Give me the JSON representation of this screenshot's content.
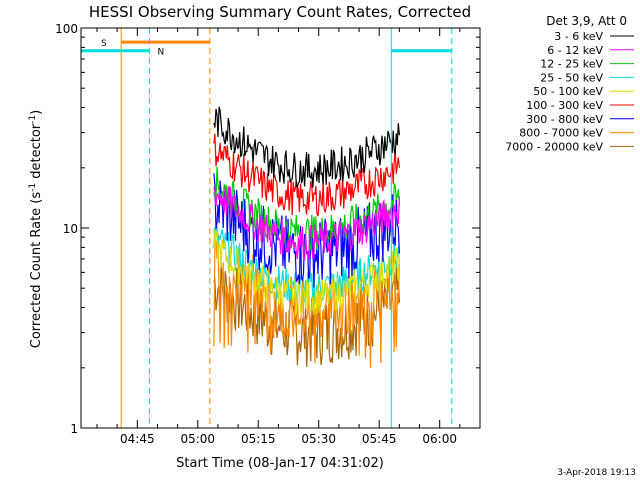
{
  "chart_data": {
    "type": "line",
    "title": "HESSI Observing Summary Count Rates, Corrected",
    "xlabel": "Start Time (08-Jan-17 04:31:02)",
    "ylabel": "Corrected Count Rate (s",
    "ylabel_sup1": "-1",
    "ylabel_mid": " detector",
    "ylabel_sup2": "-1",
    "ylabel_end": ")",
    "x_unit": "minutes",
    "xlim": [
      "04:31:02",
      "06:10:00"
    ],
    "ylim": [
      1,
      100
    ],
    "yscale": "log",
    "xticks": [
      "04:45",
      "05:00",
      "05:15",
      "05:30",
      "05:45",
      "06:00"
    ],
    "yticks": [
      "1",
      "10",
      "100"
    ],
    "legend_title": "Det 3,9, Att 0",
    "legend_position": "top-right",
    "footer_date": "3-Apr-2018 19:13",
    "series": [
      {
        "name": "3 - 6 keV",
        "color": "#000000",
        "level": 19.5
      },
      {
        "name": "6 - 12 keV",
        "color": "#ff00ff",
        "level": 8.5
      },
      {
        "name": "12 - 25 keV",
        "color": "#00cc00",
        "level": 9.5
      },
      {
        "name": "25 - 50 keV",
        "color": "#00dddd",
        "level": 5.0
      },
      {
        "name": "50 - 100 keV",
        "color": "#dddd00",
        "level": 4.5
      },
      {
        "name": "100 - 300 keV",
        "color": "#ff0000",
        "level": 14.0
      },
      {
        "name": "300 - 800 keV",
        "color": "#0000ff",
        "level": 7.5
      },
      {
        "name": "800 - 7000 keV",
        "color": "#ff8800",
        "level": 4.0
      },
      {
        "name": "7000 - 20000 keV",
        "color": "#aa6600",
        "level": 3.0
      }
    ],
    "data_interval": [
      "05:04",
      "05:50"
    ],
    "annotations": [
      {
        "label": "S",
        "color": "#ff8800",
        "level": 85,
        "start": "04:31:02",
        "end": "05:03"
      },
      {
        "label": "N",
        "color": "#00dddd",
        "level": 77,
        "start": "04:31:02",
        "end": "04:48",
        "resume": "05:48"
      }
    ]
  }
}
